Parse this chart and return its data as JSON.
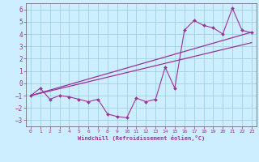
{
  "xlabel": "Windchill (Refroidissement éolien,°C)",
  "bg_color": "#cceeff",
  "grid_color": "#99ccdd",
  "line_color": "#993399",
  "xlim": [
    -0.5,
    23.5
  ],
  "ylim": [
    -3.5,
    6.5
  ],
  "xticks": [
    0,
    1,
    2,
    3,
    4,
    5,
    6,
    7,
    8,
    9,
    10,
    11,
    12,
    13,
    14,
    15,
    16,
    17,
    18,
    19,
    20,
    21,
    22,
    23
  ],
  "yticks": [
    -3,
    -2,
    -1,
    0,
    1,
    2,
    3,
    4,
    5,
    6
  ],
  "data_x": [
    0,
    1,
    2,
    3,
    4,
    5,
    6,
    7,
    8,
    9,
    10,
    11,
    12,
    13,
    14,
    15,
    16,
    17,
    18,
    19,
    20,
    21,
    22,
    23
  ],
  "data_y": [
    -1.0,
    -0.4,
    -1.3,
    -1.0,
    -1.1,
    -1.3,
    -1.5,
    -1.3,
    -2.5,
    -2.7,
    -2.8,
    -1.2,
    -1.5,
    -1.3,
    1.3,
    -0.4,
    4.3,
    5.1,
    4.7,
    4.5,
    4.0,
    6.1,
    4.3,
    4.1
  ],
  "trend1_x": [
    0,
    23
  ],
  "trend1_y": [
    -1.0,
    4.15
  ],
  "trend2_x": [
    0,
    23
  ],
  "trend2_y": [
    -1.0,
    3.3
  ]
}
